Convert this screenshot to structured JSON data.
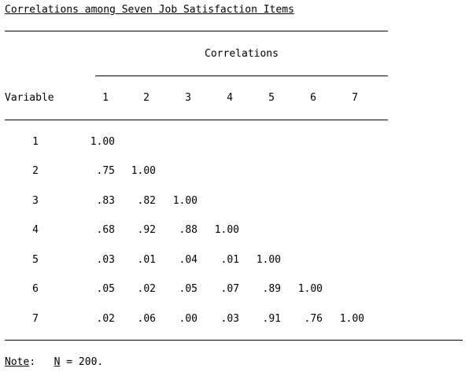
{
  "title": "Correlations among Seven Job Satisfaction Items",
  "group_header": "Correlations",
  "row_header": "Variable",
  "columns": [
    "1",
    "2",
    "3",
    "4",
    "5",
    "6",
    "7"
  ],
  "rows": [
    {
      "label": "1",
      "cells": [
        "1.00"
      ]
    },
    {
      "label": "2",
      "cells": [
        ".75",
        "1.00"
      ]
    },
    {
      "label": "3",
      "cells": [
        ".83",
        ".82",
        "1.00"
      ]
    },
    {
      "label": "4",
      "cells": [
        ".68",
        ".92",
        ".88",
        "1.00"
      ]
    },
    {
      "label": "5",
      "cells": [
        ".03",
        ".01",
        ".04",
        ".01",
        "1.00"
      ]
    },
    {
      "label": "6",
      "cells": [
        ".05",
        ".02",
        ".05",
        ".07",
        ".89",
        "1.00"
      ]
    },
    {
      "label": "7",
      "cells": [
        ".02",
        ".06",
        ".00",
        ".03",
        ".91",
        ".76",
        "1.00"
      ]
    }
  ],
  "note": {
    "label": "Note",
    "colon": ":",
    "n_symbol": "N",
    "n_text": " = 200."
  }
}
